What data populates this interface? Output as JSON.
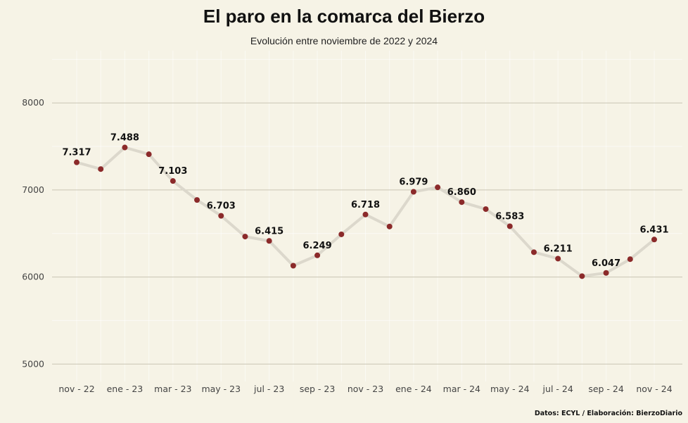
{
  "chart_data": {
    "type": "line",
    "title": "El paro en la comarca del Bierzo",
    "subtitle": "Evolución entre noviembre de 2022 y 2024",
    "caption": "Datos: ECYL / Elaboración: BierzoDiario",
    "xlabel": "",
    "ylabel": "",
    "ylim": [
      4800,
      8600
    ],
    "y_ticks": [
      5000,
      6000,
      7000,
      8000
    ],
    "x_tick_labels": [
      "nov - 22",
      "ene - 23",
      "mar - 23",
      "may - 23",
      "jul - 23",
      "sep - 23",
      "nov - 23",
      "ene - 24",
      "mar - 24",
      "may - 24",
      "jul - 24",
      "sep - 24",
      "nov - 24"
    ],
    "grid": true,
    "colors": {
      "line": "#dcd8cc",
      "point": "#8b2a2a",
      "background": "#f6f3e6",
      "grid_major": "#c9c5b3"
    },
    "series": [
      {
        "x": [
          "nov - 22",
          "dic - 22",
          "ene - 23",
          "feb - 23",
          "mar - 23",
          "abr - 23",
          "may - 23",
          "jun - 23",
          "jul - 23",
          "ago - 23",
          "sep - 23",
          "oct - 23",
          "nov - 23",
          "dic - 23",
          "ene - 24",
          "feb - 24",
          "mar - 24",
          "abr - 24",
          "may - 24",
          "jun - 24",
          "jul - 24",
          "ago - 24",
          "sep - 24",
          "oct - 24",
          "nov - 24"
        ],
        "values": [
          7317,
          7240,
          7488,
          7410,
          7103,
          6885,
          6703,
          6465,
          6415,
          6130,
          6249,
          6490,
          6718,
          6580,
          6979,
          7030,
          6860,
          6780,
          6583,
          6285,
          6211,
          6010,
          6047,
          6205,
          6431
        ]
      }
    ],
    "data_labels": [
      {
        "x": "nov - 22",
        "text": "7.317"
      },
      {
        "x": "ene - 23",
        "text": "7.488"
      },
      {
        "x": "mar - 23",
        "text": "7.103"
      },
      {
        "x": "may - 23",
        "text": "6.703"
      },
      {
        "x": "jul - 23",
        "text": "6.415"
      },
      {
        "x": "sep - 23",
        "text": "6.249"
      },
      {
        "x": "nov - 23",
        "text": "6.718"
      },
      {
        "x": "ene - 24",
        "text": "6.979"
      },
      {
        "x": "mar - 24",
        "text": "6.860"
      },
      {
        "x": "may - 24",
        "text": "6.583"
      },
      {
        "x": "jul - 24",
        "text": "6.211"
      },
      {
        "x": "sep - 24",
        "text": "6.047"
      },
      {
        "x": "nov - 24",
        "text": "6.431"
      }
    ]
  }
}
